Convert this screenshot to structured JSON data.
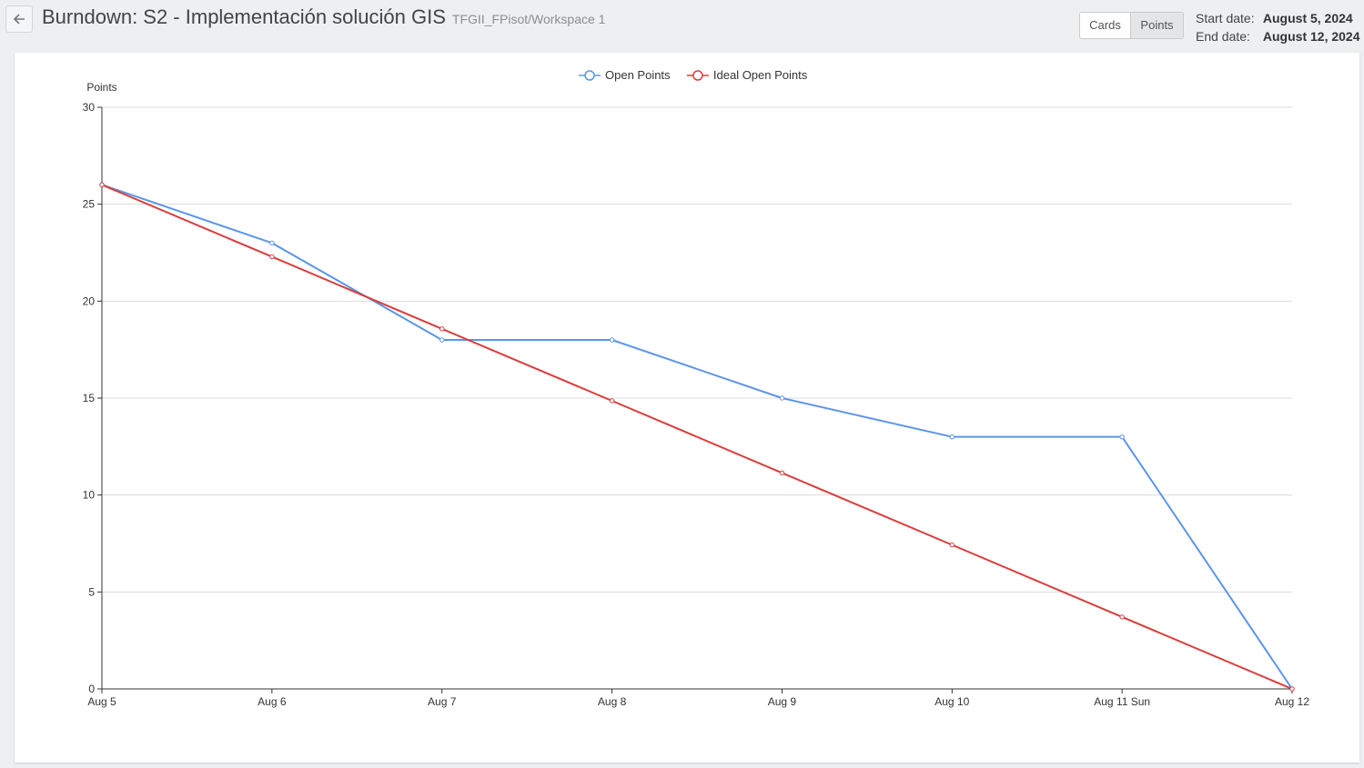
{
  "header": {
    "title": "Burndown: S2 - Implementación solución GIS",
    "subtitle": "TFGII_FPisot/Workspace 1",
    "back_icon": "arrow-left-icon"
  },
  "toggle": {
    "cards_label": "Cards",
    "points_label": "Points",
    "selected": "Points"
  },
  "dates": {
    "start_label": "Start date:",
    "start_value": "August 5, 2024",
    "end_label": "End date:",
    "end_value": "August 12, 2024"
  },
  "chart_data": {
    "type": "line",
    "ylabel": "Points",
    "ylim": [
      0,
      30
    ],
    "yticks": [
      0,
      5,
      10,
      15,
      20,
      25,
      30
    ],
    "grid": true,
    "legend_position": "top-center",
    "categories": [
      "Aug 5",
      "Aug 6",
      "Aug 7",
      "Aug 8",
      "Aug 9",
      "Aug 10",
      "Aug 11 Sun",
      "Aug 12"
    ],
    "series": [
      {
        "name": "Open Points",
        "color": "#5b95e9",
        "values": [
          26,
          23,
          18,
          18,
          15,
          13,
          13,
          0
        ]
      },
      {
        "name": "Ideal Open Points",
        "color": "#dc3c3c",
        "values": [
          26,
          22.29,
          18.57,
          14.86,
          11.14,
          7.43,
          3.71,
          0
        ]
      }
    ]
  }
}
